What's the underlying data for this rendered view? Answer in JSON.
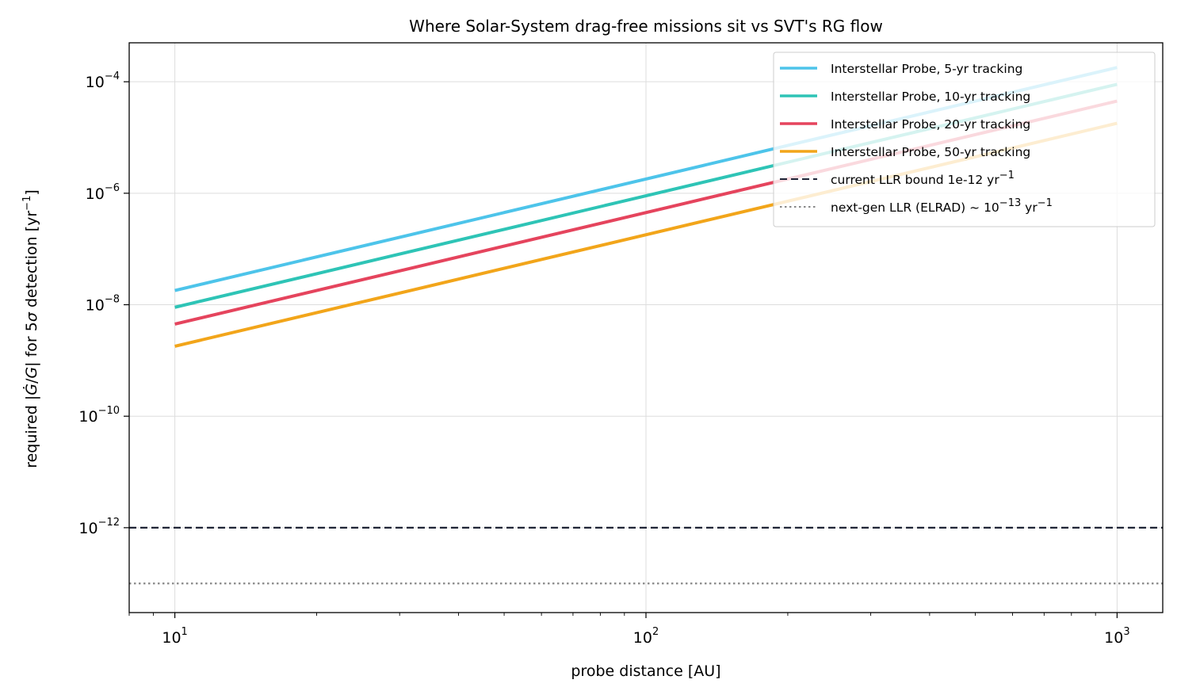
{
  "chart_data": {
    "type": "line",
    "title": "Where Solar-System drag-free missions sit vs SVT's RG flow",
    "xlabel": "probe distance [AU]",
    "ylabel": {
      "pre": "required |",
      "mid": "/",
      "post": "| for 5",
      "post2": " detection [yr",
      "sup": "−1",
      "end": "]"
    },
    "xscale": "log",
    "yscale": "log",
    "xlim": [
      8,
      1250
    ],
    "ylim": [
      3e-14,
      0.0005
    ],
    "grid": true,
    "legend_position": "top-right",
    "xticks": [
      {
        "value": 10,
        "base": "10",
        "exp": "1"
      },
      {
        "value": 100,
        "base": "10",
        "exp": "2"
      },
      {
        "value": 1000,
        "base": "10",
        "exp": "3"
      }
    ],
    "yticks": [
      {
        "value": 0.0001,
        "base": "10",
        "exp": "−4"
      },
      {
        "value": 1e-06,
        "base": "10",
        "exp": "−6"
      },
      {
        "value": 1e-08,
        "base": "10",
        "exp": "−8"
      },
      {
        "value": 1e-10,
        "base": "10",
        "exp": "−10"
      },
      {
        "value": 1e-12,
        "base": "10",
        "exp": "−12"
      }
    ],
    "series": [
      {
        "name": "Interstellar Probe, 5-yr tracking",
        "color": "#4dc4ea",
        "style": "solid",
        "x": [
          10,
          1000
        ],
        "y": [
          1.8e-08,
          0.00018
        ]
      },
      {
        "name": "Interstellar Probe, 10-yr tracking",
        "color": "#2ec4b6",
        "style": "solid",
        "x": [
          10,
          1000
        ],
        "y": [
          9e-09,
          9e-05
        ]
      },
      {
        "name": "Interstellar Probe, 20-yr tracking",
        "color": "#e5445d",
        "style": "solid",
        "x": [
          10,
          1000
        ],
        "y": [
          4.5e-09,
          4.5e-05
        ]
      },
      {
        "name": "Interstellar Probe, 50-yr tracking",
        "color": "#f2a51a",
        "style": "solid",
        "x": [
          10,
          1000
        ],
        "y": [
          1.8e-09,
          1.8e-05
        ]
      }
    ],
    "hlines": [
      {
        "name": "current LLR bound 1e-12 yr",
        "sup": "−1",
        "value": 1e-12,
        "color": "#1f2436",
        "style": "dashed"
      },
      {
        "name": "next-gen LLR (ELRAD) ~ 10",
        "sup": "−13",
        "name_tail": " yr",
        "sup2": "−1",
        "value": 1e-13,
        "color": "#888888",
        "style": "dotted"
      }
    ]
  }
}
